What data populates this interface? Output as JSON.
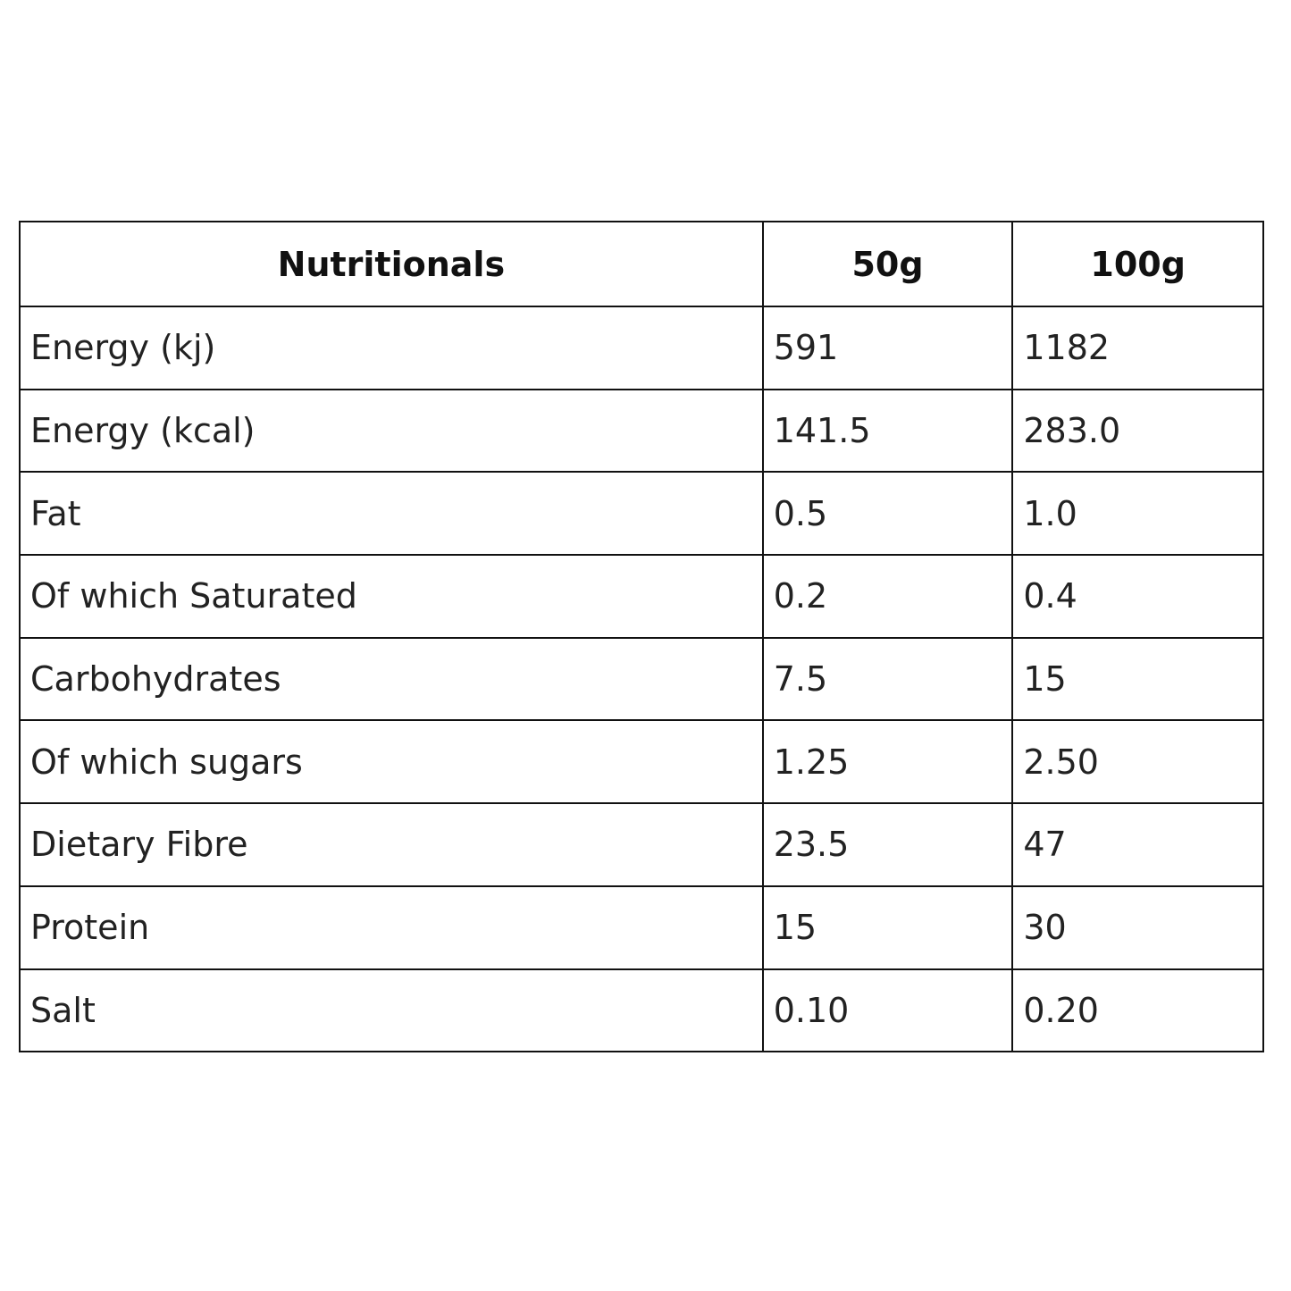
{
  "table": {
    "header": [
      "Nutritionals",
      "50g",
      "100g"
    ],
    "rows": [
      [
        "Energy (kj)",
        "591",
        "1182"
      ],
      [
        "Energy (kcal)",
        "141.5",
        "283.0"
      ],
      [
        "Fat",
        "0.5",
        "1.0"
      ],
      [
        "Of which Saturated",
        "0.2",
        "0.4"
      ],
      [
        "Carbohydrates",
        "7.5",
        "15"
      ],
      [
        "Of which sugars",
        "1.25",
        "2.50"
      ],
      [
        "Dietary Fibre",
        "23.5",
        "47"
      ],
      [
        "Protein",
        "15",
        "30"
      ],
      [
        "Salt",
        "0.10",
        "0.20"
      ]
    ]
  }
}
